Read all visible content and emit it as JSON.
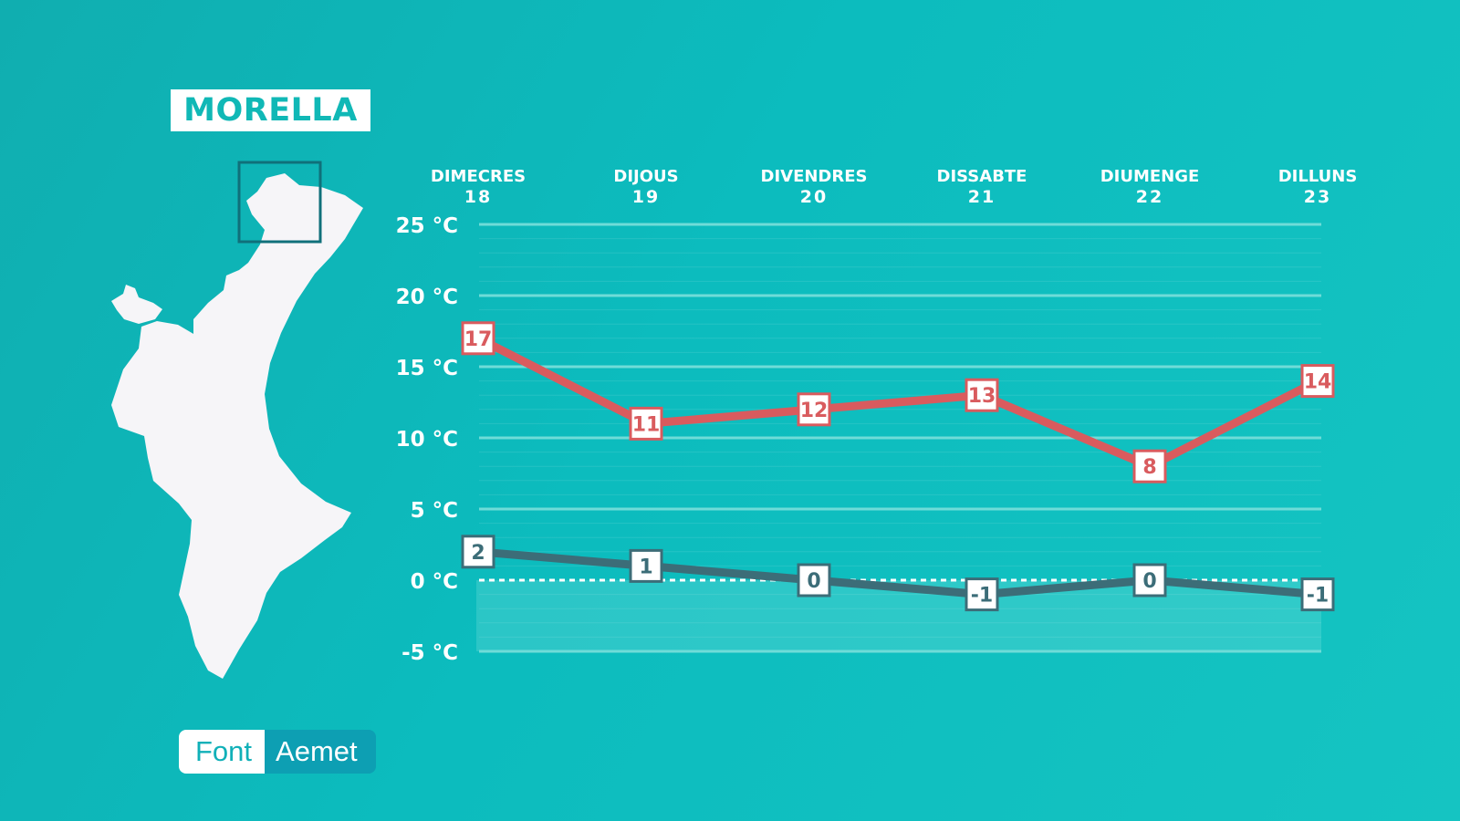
{
  "location": "MORELLA",
  "source": {
    "label": "Font",
    "value": "Aemet"
  },
  "colors": {
    "max_series": "#d95b5e",
    "min_series": "#3c6d78",
    "gridline": "#6fdcd8",
    "text": "#ffffff"
  },
  "chart_data": {
    "type": "line",
    "categories": [
      {
        "day": "DIMECRES",
        "date": "18"
      },
      {
        "day": "DIJOUS",
        "date": "19"
      },
      {
        "day": "DIVENDRES",
        "date": "20"
      },
      {
        "day": "DISSABTE",
        "date": "21"
      },
      {
        "day": "DIUMENGE",
        "date": "22"
      },
      {
        "day": "DILLUNS",
        "date": "23"
      }
    ],
    "series": [
      {
        "id": "max",
        "values": [
          17,
          11,
          12,
          13,
          8,
          14
        ]
      },
      {
        "id": "min",
        "values": [
          2,
          1,
          0,
          -1,
          0,
          -1
        ]
      }
    ],
    "ylim": [
      -5,
      25
    ],
    "yticks": [
      25,
      20,
      15,
      10,
      5,
      0,
      -5
    ],
    "ytick_labels": [
      "25 °C",
      "20 °C",
      "15 °C",
      "10 °C",
      "5 °C",
      "0 °C",
      "-5 °C"
    ],
    "zero_line": "dashed",
    "grid": true,
    "legend": "none"
  }
}
